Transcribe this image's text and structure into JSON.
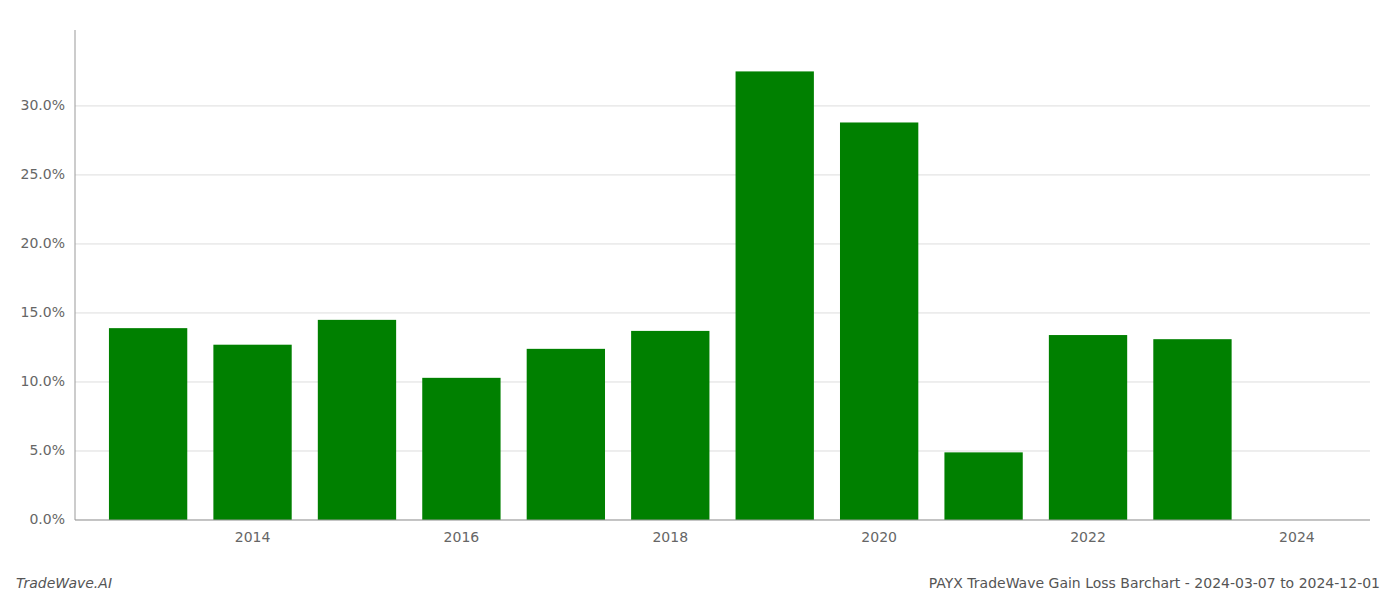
{
  "chart_data": {
    "type": "bar",
    "title": "PAYX TradeWave Gain Loss Barchart - 2024-03-07 to 2024-12-01",
    "annotations": [
      "TradeWave.AI"
    ],
    "x": [
      2013,
      2014,
      2015,
      2016,
      2017,
      2018,
      2019,
      2020,
      2021,
      2022,
      2023
    ],
    "values": [
      0.139,
      0.127,
      0.145,
      0.103,
      0.124,
      0.137,
      0.325,
      0.288,
      0.049,
      0.134,
      0.131
    ],
    "color": "#008000",
    "xlim": [
      2012.3,
      2024.7
    ],
    "xticks": [
      2014,
      2016,
      2018,
      2020,
      2022,
      2024
    ],
    "ylim": [
      0,
      0.355
    ],
    "yticks": [
      {
        "value": 0.0,
        "label": "0.0%"
      },
      {
        "value": 0.05,
        "label": "5.0%"
      },
      {
        "value": 0.1,
        "label": "10.0%"
      },
      {
        "value": 0.15,
        "label": "15.0%"
      },
      {
        "value": 0.2,
        "label": "20.0%"
      },
      {
        "value": 0.25,
        "label": "25.0%"
      },
      {
        "value": 0.3,
        "label": "30.0%"
      }
    ],
    "grid": true
  }
}
